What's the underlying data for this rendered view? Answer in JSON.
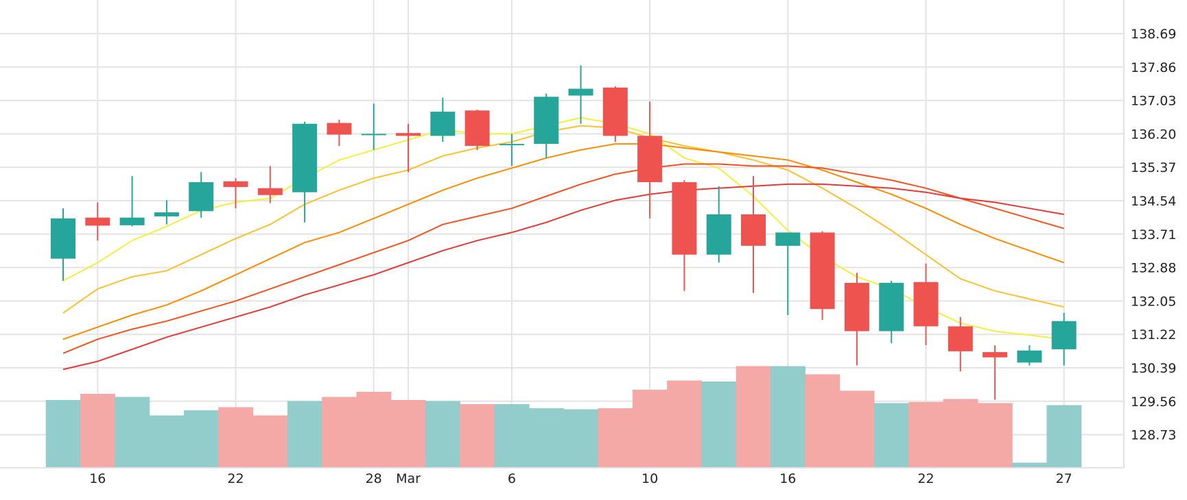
{
  "chart_data": {
    "type": "candlestick",
    "x_tick_labels": [
      "16",
      "22",
      "28",
      "Mar",
      "6",
      "10",
      "16",
      "22",
      "27"
    ],
    "x_tick_days": [
      1,
      5,
      9,
      10,
      13,
      17,
      21,
      25,
      29
    ],
    "y_tick_labels": [
      "138.69",
      "137.86",
      "137.03",
      "136.20",
      "135.37",
      "134.54",
      "133.71",
      "132.88",
      "132.05",
      "131.22",
      "130.39",
      "129.56",
      "128.73"
    ],
    "ylim": [
      127.95,
      139.2
    ],
    "grid": true,
    "price_axis_position": "right",
    "colors": {
      "up": "#26a69a",
      "down": "#ef5350",
      "volume_up": "#92cdcb",
      "volume_down": "#f5a9a7",
      "grid": "#e3e3e3",
      "ma_lines": [
        "#f5ef3a",
        "#fbc02d",
        "#fb8c00",
        "#f4511e",
        "#e53935"
      ]
    },
    "candles": [
      {
        "day": 0,
        "o": 133.1,
        "h": 134.35,
        "l": 132.55,
        "c": 134.1
      },
      {
        "day": 1,
        "o": 134.12,
        "h": 134.5,
        "l": 133.55,
        "c": 133.92
      },
      {
        "day": 2,
        "o": 133.93,
        "h": 135.15,
        "l": 133.9,
        "c": 134.12
      },
      {
        "day": 3,
        "o": 134.15,
        "h": 134.55,
        "l": 133.95,
        "c": 134.25
      },
      {
        "day": 4,
        "o": 134.28,
        "h": 135.25,
        "l": 134.12,
        "c": 135.0
      },
      {
        "day": 5,
        "o": 135.02,
        "h": 135.1,
        "l": 134.35,
        "c": 134.88
      },
      {
        "day": 6,
        "o": 134.85,
        "h": 135.4,
        "l": 134.48,
        "c": 134.68
      },
      {
        "day": 7,
        "o": 134.75,
        "h": 136.5,
        "l": 134.0,
        "c": 136.45
      },
      {
        "day": 8,
        "o": 136.47,
        "h": 136.55,
        "l": 135.9,
        "c": 136.18
      },
      {
        "day": 9,
        "o": 136.2,
        "h": 136.95,
        "l": 135.8,
        "c": 136.2
      },
      {
        "day": 10,
        "o": 136.22,
        "h": 136.45,
        "l": 135.25,
        "c": 136.15
      },
      {
        "day": 11,
        "o": 136.15,
        "h": 137.1,
        "l": 136.0,
        "c": 136.75
      },
      {
        "day": 12,
        "o": 136.78,
        "h": 136.8,
        "l": 135.8,
        "c": 135.9
      },
      {
        "day": 13,
        "o": 135.92,
        "h": 136.2,
        "l": 135.4,
        "c": 135.95
      },
      {
        "day": 14,
        "o": 135.95,
        "h": 137.2,
        "l": 135.6,
        "c": 137.12
      },
      {
        "day": 15,
        "o": 137.15,
        "h": 137.9,
        "l": 136.45,
        "c": 137.32
      },
      {
        "day": 16,
        "o": 137.35,
        "h": 137.38,
        "l": 136.0,
        "c": 136.15
      },
      {
        "day": 17,
        "o": 136.15,
        "h": 137.0,
        "l": 134.1,
        "c": 135.0
      },
      {
        "day": 18,
        "o": 135.0,
        "h": 135.05,
        "l": 132.3,
        "c": 133.2
      },
      {
        "day": 19,
        "o": 133.2,
        "h": 134.9,
        "l": 133.0,
        "c": 134.2
      },
      {
        "day": 20,
        "o": 134.2,
        "h": 135.15,
        "l": 132.25,
        "c": 133.42
      },
      {
        "day": 21,
        "o": 133.42,
        "h": 133.72,
        "l": 131.7,
        "c": 133.75
      },
      {
        "day": 22,
        "o": 133.75,
        "h": 133.78,
        "l": 131.58,
        "c": 131.85
      },
      {
        "day": 23,
        "o": 132.5,
        "h": 132.75,
        "l": 130.45,
        "c": 131.3
      },
      {
        "day": 24,
        "o": 131.3,
        "h": 132.55,
        "l": 131.0,
        "c": 132.5
      },
      {
        "day": 25,
        "o": 132.52,
        "h": 132.98,
        "l": 130.95,
        "c": 131.42
      },
      {
        "day": 26,
        "o": 131.42,
        "h": 131.65,
        "l": 130.3,
        "c": 130.8
      },
      {
        "day": 27,
        "o": 130.78,
        "h": 130.95,
        "l": 129.6,
        "c": 130.65
      },
      {
        "day": 28,
        "o": 130.52,
        "h": 130.95,
        "l": 130.45,
        "c": 130.82
      },
      {
        "day": 29,
        "o": 130.85,
        "h": 131.75,
        "l": 130.45,
        "c": 131.55
      }
    ],
    "volumes": [
      {
        "day": 0,
        "v": 0.66,
        "dir": "up"
      },
      {
        "day": 1,
        "v": 0.72,
        "dir": "down"
      },
      {
        "day": 2,
        "v": 0.69,
        "dir": "up"
      },
      {
        "day": 3,
        "v": 0.51,
        "dir": "up"
      },
      {
        "day": 4,
        "v": 0.56,
        "dir": "up"
      },
      {
        "day": 5,
        "v": 0.59,
        "dir": "down"
      },
      {
        "day": 6,
        "v": 0.51,
        "dir": "down"
      },
      {
        "day": 7,
        "v": 0.65,
        "dir": "up"
      },
      {
        "day": 8,
        "v": 0.69,
        "dir": "down"
      },
      {
        "day": 9,
        "v": 0.74,
        "dir": "down"
      },
      {
        "day": 10,
        "v": 0.66,
        "dir": "down"
      },
      {
        "day": 11,
        "v": 0.65,
        "dir": "up"
      },
      {
        "day": 12,
        "v": 0.62,
        "dir": "down"
      },
      {
        "day": 13,
        "v": 0.62,
        "dir": "up"
      },
      {
        "day": 14,
        "v": 0.58,
        "dir": "up"
      },
      {
        "day": 15,
        "v": 0.57,
        "dir": "up"
      },
      {
        "day": 16,
        "v": 0.58,
        "dir": "down"
      },
      {
        "day": 17,
        "v": 0.76,
        "dir": "down"
      },
      {
        "day": 18,
        "v": 0.85,
        "dir": "down"
      },
      {
        "day": 19,
        "v": 0.84,
        "dir": "up"
      },
      {
        "day": 20,
        "v": 0.99,
        "dir": "down"
      },
      {
        "day": 21,
        "v": 0.99,
        "dir": "up"
      },
      {
        "day": 22,
        "v": 0.91,
        "dir": "down"
      },
      {
        "day": 23,
        "v": 0.75,
        "dir": "down"
      },
      {
        "day": 24,
        "v": 0.63,
        "dir": "up"
      },
      {
        "day": 25,
        "v": 0.64,
        "dir": "down"
      },
      {
        "day": 26,
        "v": 0.67,
        "dir": "down"
      },
      {
        "day": 27,
        "v": 0.63,
        "dir": "down"
      },
      {
        "day": 28,
        "v": 0.05,
        "dir": "up"
      },
      {
        "day": 29,
        "v": 0.61,
        "dir": "up"
      }
    ],
    "moving_averages": [
      {
        "color_index": 0,
        "values": [
          132.55,
          133.0,
          133.55,
          133.9,
          134.3,
          134.5,
          134.6,
          135.1,
          135.55,
          135.8,
          136.05,
          136.3,
          136.2,
          136.2,
          136.4,
          136.6,
          136.45,
          136.2,
          135.6,
          135.35,
          134.65,
          133.8,
          133.15,
          132.65,
          132.35,
          131.9,
          131.5,
          131.3,
          131.2,
          131.1
        ]
      },
      {
        "color_index": 1,
        "values": [
          131.75,
          132.35,
          132.65,
          132.8,
          133.2,
          133.6,
          133.95,
          134.45,
          134.8,
          135.1,
          135.3,
          135.65,
          135.85,
          136.0,
          136.25,
          136.4,
          136.35,
          136.1,
          135.9,
          135.75,
          135.55,
          135.3,
          134.85,
          134.35,
          133.8,
          133.2,
          132.6,
          132.3,
          132.1,
          131.9
        ]
      },
      {
        "color_index": 2,
        "values": [
          131.1,
          131.4,
          131.7,
          131.95,
          132.3,
          132.7,
          133.1,
          133.5,
          133.75,
          134.1,
          134.45,
          134.8,
          135.1,
          135.35,
          135.6,
          135.8,
          135.95,
          135.95,
          135.85,
          135.75,
          135.65,
          135.55,
          135.3,
          135.0,
          134.7,
          134.35,
          133.95,
          133.6,
          133.3,
          133.0
        ]
      },
      {
        "color_index": 3,
        "values": [
          130.75,
          131.1,
          131.35,
          131.55,
          131.8,
          132.05,
          132.35,
          132.65,
          132.95,
          133.25,
          133.55,
          133.95,
          134.15,
          134.35,
          134.65,
          134.95,
          135.2,
          135.35,
          135.45,
          135.45,
          135.4,
          135.4,
          135.35,
          135.2,
          135.05,
          134.85,
          134.6,
          134.35,
          134.1,
          133.85
        ]
      },
      {
        "color_index": 4,
        "values": [
          130.35,
          130.55,
          130.85,
          131.15,
          131.4,
          131.65,
          131.9,
          132.2,
          132.45,
          132.7,
          133.0,
          133.3,
          133.55,
          133.75,
          134.0,
          134.3,
          134.55,
          134.7,
          134.8,
          134.85,
          134.9,
          134.95,
          134.95,
          134.9,
          134.85,
          134.75,
          134.6,
          134.5,
          134.35,
          134.2
        ]
      }
    ]
  }
}
